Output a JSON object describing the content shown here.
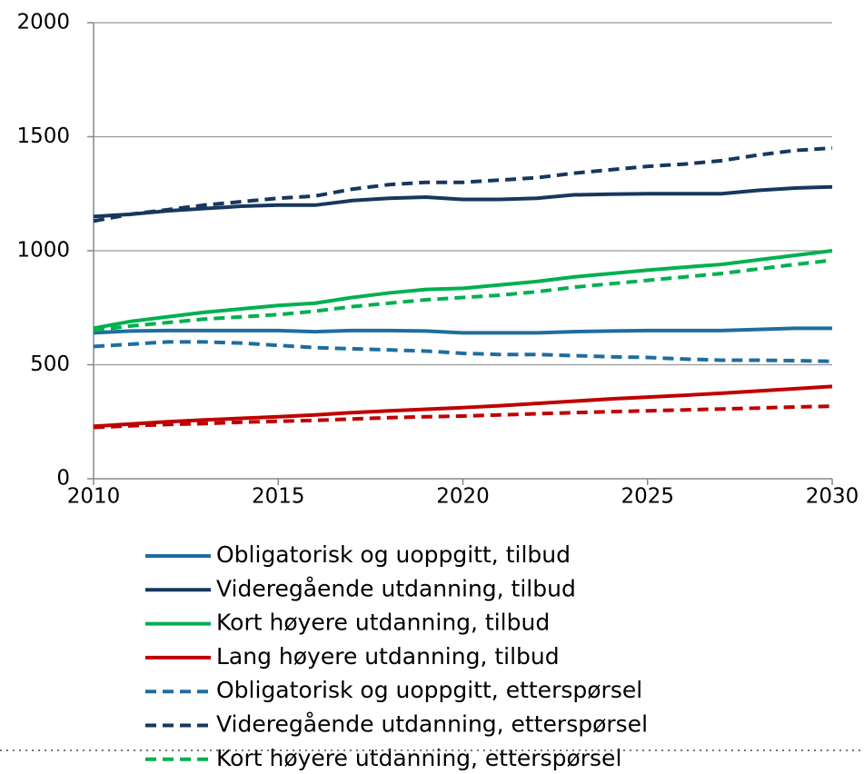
{
  "chart_data": {
    "type": "line",
    "x": [
      2010,
      2011,
      2012,
      2013,
      2014,
      2015,
      2016,
      2017,
      2018,
      2019,
      2020,
      2021,
      2022,
      2023,
      2024,
      2025,
      2026,
      2027,
      2028,
      2029,
      2030
    ],
    "xlim": [
      2010,
      2030
    ],
    "xticks": [
      2010,
      2015,
      2020,
      2025,
      2030
    ],
    "ylim": [
      0,
      2000
    ],
    "yticks": [
      0,
      500,
      1000,
      1500,
      2000
    ],
    "grid": true,
    "series": [
      {
        "name": "Obligatorisk og uoppgitt, tilbud",
        "color": "#1f6d9f",
        "dashed": false,
        "values": [
          640,
          648,
          650,
          650,
          650,
          650,
          645,
          650,
          650,
          648,
          640,
          640,
          640,
          645,
          648,
          650,
          650,
          650,
          655,
          660,
          660
        ]
      },
      {
        "name": "Videregående utdanning, tilbud",
        "color": "#17375e",
        "dashed": false,
        "values": [
          1150,
          1160,
          1175,
          1185,
          1195,
          1200,
          1200,
          1220,
          1230,
          1235,
          1225,
          1225,
          1230,
          1245,
          1248,
          1250,
          1250,
          1250,
          1265,
          1275,
          1280
        ]
      },
      {
        "name": "Kort høyere utdanning, tilbud",
        "color": "#00b050",
        "dashed": false,
        "values": [
          660,
          690,
          710,
          730,
          745,
          760,
          770,
          795,
          815,
          830,
          835,
          850,
          865,
          885,
          900,
          915,
          928,
          940,
          960,
          980,
          1000
        ]
      },
      {
        "name": "Lang høyere utdanning, tilbud",
        "color": "#c00000",
        "dashed": false,
        "values": [
          230,
          240,
          250,
          258,
          265,
          272,
          280,
          290,
          298,
          305,
          312,
          320,
          330,
          340,
          350,
          358,
          366,
          375,
          385,
          395,
          405
        ]
      },
      {
        "name": "Obligatorisk og uoppgitt, etterspørsel",
        "color": "#1f6d9f",
        "dashed": true,
        "values": [
          580,
          590,
          600,
          600,
          595,
          585,
          575,
          570,
          565,
          560,
          550,
          545,
          545,
          540,
          535,
          532,
          525,
          520,
          520,
          518,
          515
        ]
      },
      {
        "name": "Videregående utdanning, etterspørsel",
        "color": "#17375e",
        "dashed": true,
        "values": [
          1130,
          1160,
          1180,
          1200,
          1215,
          1230,
          1240,
          1270,
          1290,
          1300,
          1300,
          1310,
          1320,
          1340,
          1355,
          1370,
          1380,
          1395,
          1420,
          1440,
          1450
        ]
      },
      {
        "name": "Kort høyere utdanning, etterspørsel",
        "color": "#00b050",
        "dashed": true,
        "values": [
          650,
          670,
          685,
          700,
          710,
          720,
          735,
          755,
          770,
          785,
          795,
          805,
          820,
          840,
          855,
          870,
          885,
          900,
          920,
          940,
          958
        ]
      },
      {
        "color": "#c00000",
        "dashed": true,
        "values": [
          225,
          232,
          238,
          242,
          248,
          252,
          256,
          262,
          268,
          272,
          275,
          280,
          285,
          290,
          294,
          298,
          302,
          306,
          310,
          315,
          318
        ]
      }
    ]
  }
}
